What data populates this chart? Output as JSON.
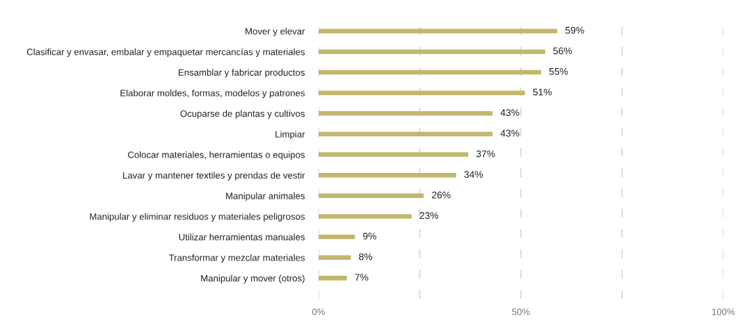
{
  "chart_data": {
    "type": "bar",
    "orientation": "horizontal",
    "categories": [
      "Mover y elevar",
      "Clasificar y envasar, embalar y empaquetar mercancías y materiales",
      "Ensamblar y fabricar productos",
      "Elaborar moldes, formas, modelos y patrones",
      "Ocuparse de plantas y cultivos",
      "Limpiar",
      "Colocar materiales, herramientas o equipos",
      "Lavar y mantener textiles y prendas de vestir",
      "Manipular animales",
      "Manipular y eliminar residuos y materiales peligrosos",
      "Utilizar herramientas manuales",
      "Transformar y mezclar materiales",
      "Manipular y mover (otros)"
    ],
    "values": [
      59,
      56,
      55,
      51,
      43,
      43,
      37,
      34,
      26,
      23,
      9,
      8,
      7
    ],
    "value_labels": [
      "59%",
      "56%",
      "55%",
      "51%",
      "43%",
      "43%",
      "37%",
      "34%",
      "26%",
      "23%",
      "9%",
      "8%",
      "7%"
    ],
    "color": "#c2b76c",
    "xlim": [
      0,
      100
    ],
    "xticks": [
      {
        "value": 0,
        "label": "0%"
      },
      {
        "value": 25,
        "label": null
      },
      {
        "value": 50,
        "label": "50%"
      },
      {
        "value": 75,
        "label": null
      },
      {
        "value": 100,
        "label": "100%"
      }
    ],
    "grid": "x",
    "line_style": "dashed"
  }
}
